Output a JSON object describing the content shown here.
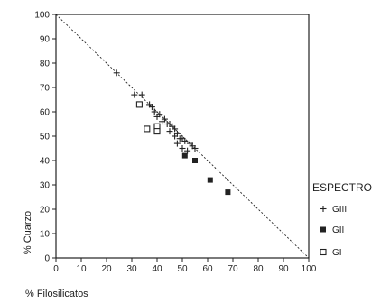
{
  "chart_data": {
    "type": "scatter",
    "title": "",
    "xlabel": "% Filosilicatos",
    "ylabel": "% Cuarzo",
    "xlim": [
      0,
      100
    ],
    "ylim": [
      0,
      100
    ],
    "xticks": [
      "0",
      "10",
      "20",
      "30",
      "40",
      "50",
      "60",
      "70",
      "80",
      "90",
      "100"
    ],
    "yticks": [
      "0",
      "10",
      "20",
      "30",
      "40",
      "50",
      "60",
      "70",
      "80",
      "90",
      "100"
    ],
    "grid": false,
    "legend": {
      "title": "ESPECTRO",
      "placement": "right",
      "entries": [
        {
          "label": "GIII",
          "marker": "plus"
        },
        {
          "label": "GII",
          "marker": "filled-square"
        },
        {
          "label": "GI",
          "marker": "open-square"
        }
      ]
    },
    "reference_line": {
      "from": [
        0,
        100
      ],
      "to": [
        100,
        0
      ],
      "style": "dashed"
    },
    "series": [
      {
        "name": "GIII",
        "marker": "plus",
        "points": [
          [
            24,
            76
          ],
          [
            31,
            67
          ],
          [
            34,
            67
          ],
          [
            37,
            63
          ],
          [
            38,
            62
          ],
          [
            39,
            60
          ],
          [
            40,
            58
          ],
          [
            41,
            59
          ],
          [
            42,
            56
          ],
          [
            43,
            57
          ],
          [
            44,
            55
          ],
          [
            45,
            55
          ],
          [
            45,
            52
          ],
          [
            46,
            54
          ],
          [
            47,
            53
          ],
          [
            47,
            50
          ],
          [
            48,
            51
          ],
          [
            48,
            47
          ],
          [
            49,
            49
          ],
          [
            50,
            49
          ],
          [
            50,
            45
          ],
          [
            51,
            48
          ],
          [
            52,
            44
          ],
          [
            53,
            47
          ],
          [
            54,
            46
          ],
          [
            55,
            45
          ]
        ]
      },
      {
        "name": "GII",
        "marker": "filled-square",
        "points": [
          [
            51,
            42
          ],
          [
            55,
            40
          ],
          [
            61,
            32
          ],
          [
            68,
            27
          ]
        ]
      },
      {
        "name": "GI",
        "marker": "open-square",
        "points": [
          [
            33,
            63
          ],
          [
            36,
            53
          ],
          [
            40,
            54
          ],
          [
            40,
            52
          ]
        ]
      }
    ],
    "colors": {
      "ink": "#222222",
      "background": "#ffffff"
    }
  }
}
